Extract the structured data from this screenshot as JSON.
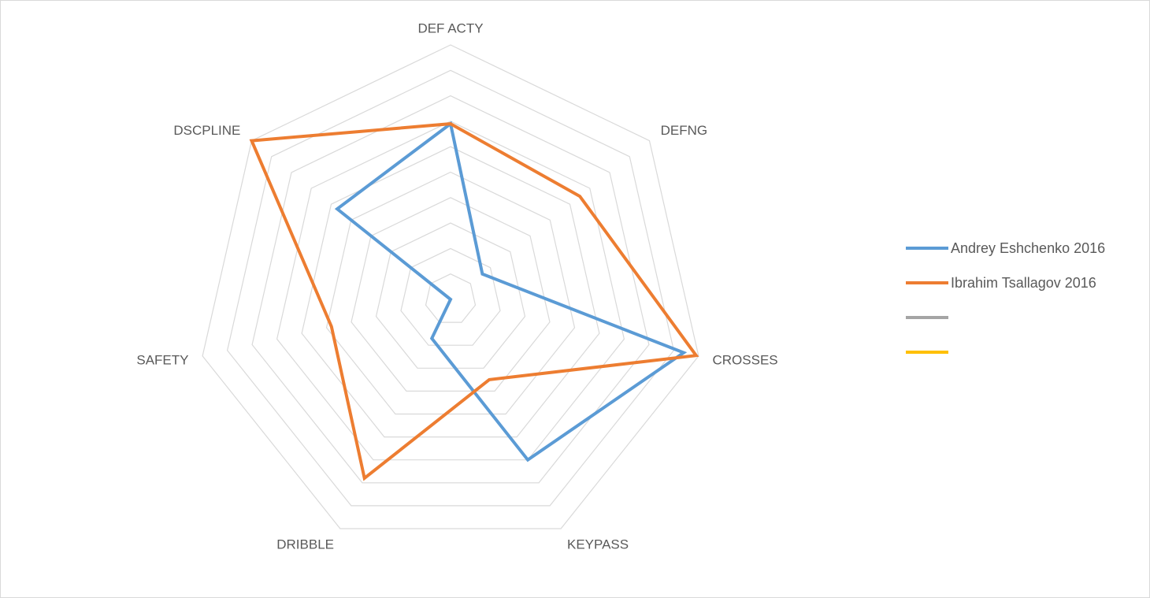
{
  "chart_data": {
    "type": "radar",
    "axes": [
      "DEF ACTY",
      "DEFNG",
      "CROSSES",
      "KEYPASS",
      "DRIBBLE",
      "SAFETY",
      "DSCPLINE"
    ],
    "rmax": 10,
    "rings": 10,
    "grid": true,
    "legend_position": "right",
    "series": [
      {
        "name": "Andrey Eshchenko 2016",
        "color": "#5b9bd5",
        "values": [
          6.9,
          1.6,
          9.4,
          7.0,
          1.7,
          0,
          5.7
        ]
      },
      {
        "name": "Ibrahim Tsallagov 2016",
        "color": "#ed7d31",
        "values": [
          6.9,
          6.5,
          9.9,
          3.5,
          7.8,
          4.8,
          10.0
        ]
      },
      {
        "name": "",
        "color": "#a5a5a5",
        "values": []
      },
      {
        "name": "",
        "color": "#ffc000",
        "values": []
      }
    ]
  }
}
